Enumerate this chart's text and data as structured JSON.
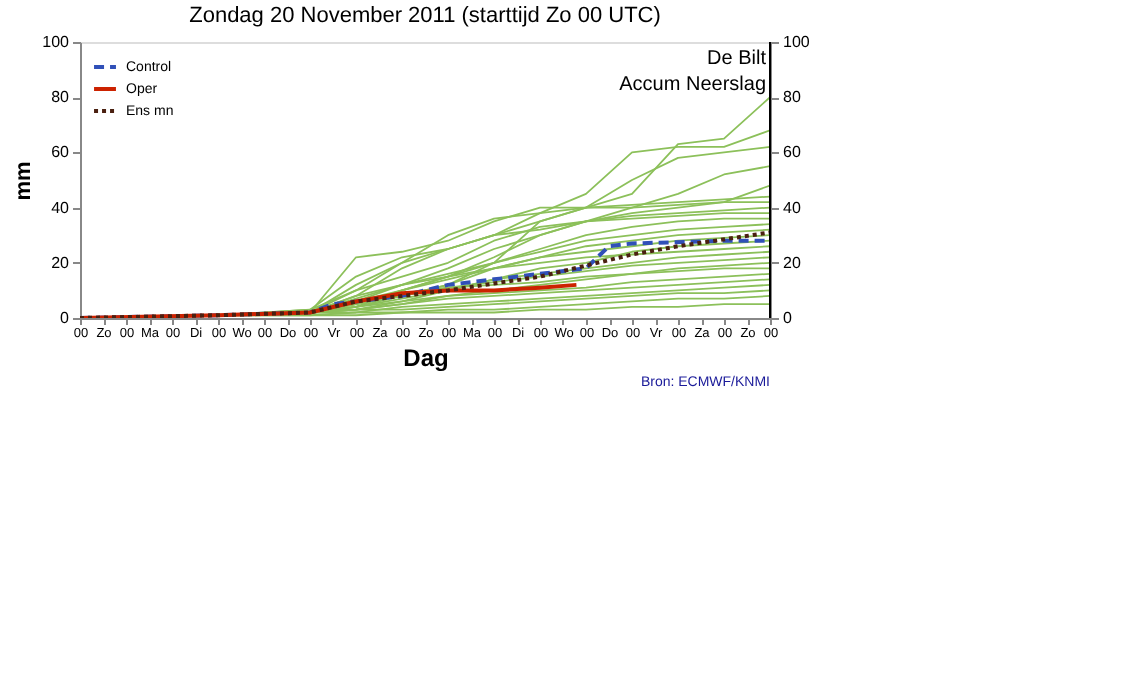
{
  "chart_data": {
    "type": "line",
    "title": "Zondag   20 November 2011  (starttijd Zo 00 UTC)",
    "xlabel": "Dag",
    "ylabel": "mm",
    "annotations": [
      "De Bilt",
      "Accum Neerslag",
      "Bron: ECMWF/KNMI"
    ],
    "xlim": [
      "2011-11-20T00:00",
      "2011-12-05T00:00"
    ],
    "xticks": [
      {
        "value": "2011-11-20T00:00",
        "label": "00"
      },
      {
        "value": "2011-11-20T12:00",
        "label": "Zo"
      },
      {
        "value": "2011-11-21T00:00",
        "label": "00"
      },
      {
        "value": "2011-11-21T12:00",
        "label": "Ma"
      },
      {
        "value": "2011-11-22T00:00",
        "label": "00"
      },
      {
        "value": "2011-11-22T12:00",
        "label": "Di"
      },
      {
        "value": "2011-11-23T00:00",
        "label": "00"
      },
      {
        "value": "2011-11-23T12:00",
        "label": "Wo"
      },
      {
        "value": "2011-11-24T00:00",
        "label": "00"
      },
      {
        "value": "2011-11-24T12:00",
        "label": "Do"
      },
      {
        "value": "2011-11-25T00:00",
        "label": "00"
      },
      {
        "value": "2011-11-25T12:00",
        "label": "Vr"
      },
      {
        "value": "2011-11-26T00:00",
        "label": "00"
      },
      {
        "value": "2011-11-26T12:00",
        "label": "Za"
      },
      {
        "value": "2011-11-27T00:00",
        "label": "00"
      },
      {
        "value": "2011-11-27T12:00",
        "label": "Zo"
      },
      {
        "value": "2011-11-28T00:00",
        "label": "00"
      },
      {
        "value": "2011-11-28T12:00",
        "label": "Ma"
      },
      {
        "value": "2011-11-29T00:00",
        "label": "00"
      },
      {
        "value": "2011-11-29T12:00",
        "label": "Di"
      },
      {
        "value": "2011-11-30T00:00",
        "label": "00"
      },
      {
        "value": "2011-11-30T12:00",
        "label": "Wo"
      },
      {
        "value": "2011-12-01T00:00",
        "label": "00"
      },
      {
        "value": "2011-12-01T12:00",
        "label": "Do"
      },
      {
        "value": "2011-12-02T00:00",
        "label": "00"
      },
      {
        "value": "2011-12-02T12:00",
        "label": "Vr"
      },
      {
        "value": "2011-12-03T00:00",
        "label": "00"
      },
      {
        "value": "2011-12-03T12:00",
        "label": "Za"
      },
      {
        "value": "2011-12-04T00:00",
        "label": "00"
      },
      {
        "value": "2011-12-04T12:00",
        "label": "Zo"
      },
      {
        "value": "2011-12-05T00:00",
        "label": "00"
      }
    ],
    "ylim": [
      0,
      100
    ],
    "yticks": [
      0,
      20,
      40,
      60,
      80,
      100
    ],
    "y2lim": [
      0,
      100
    ],
    "y2ticks": [
      0,
      20,
      40,
      60,
      80,
      100
    ],
    "grid": false,
    "legend": "top left",
    "x": [
      "2011-11-20T00:00",
      "2011-11-23T00:00",
      "2011-11-25T00:00",
      "2011-11-26T00:00",
      "2011-11-27T00:00",
      "2011-11-28T00:00",
      "2011-11-29T00:00",
      "2011-11-30T00:00",
      "2011-12-01T00:00",
      "2011-12-02T00:00",
      "2011-12-03T00:00",
      "2011-12-04T00:00",
      "2011-12-05T00:00"
    ],
    "series": [
      {
        "color": "#8cc05a",
        "values": [
          0,
          1,
          2,
          5,
          8,
          12,
          20,
          35,
          40,
          45,
          63,
          65,
          80
        ]
      },
      {
        "color": "#8cc05a",
        "values": [
          0,
          1,
          2,
          10,
          20,
          25,
          30,
          38,
          45,
          60,
          62,
          62,
          68
        ]
      },
      {
        "color": "#8cc05a",
        "values": [
          0,
          1,
          3,
          15,
          22,
          25,
          30,
          35,
          40,
          50,
          58,
          60,
          62
        ]
      },
      {
        "color": "#8cc05a",
        "values": [
          0,
          1,
          2,
          4,
          10,
          15,
          22,
          30,
          35,
          40,
          45,
          52,
          55
        ]
      },
      {
        "color": "#8cc05a",
        "values": [
          0,
          1,
          2,
          8,
          18,
          25,
          30,
          32,
          35,
          38,
          40,
          42,
          48
        ]
      },
      {
        "color": "#8cc05a",
        "values": [
          0,
          1,
          2,
          22,
          24,
          28,
          35,
          40,
          40,
          41,
          42,
          43,
          44
        ]
      },
      {
        "color": "#8cc05a",
        "values": [
          0,
          1,
          2,
          12,
          20,
          30,
          36,
          38,
          40,
          40,
          41,
          42,
          42
        ]
      },
      {
        "color": "#8cc05a",
        "values": [
          0,
          1,
          2,
          6,
          12,
          18,
          25,
          30,
          35,
          37,
          38,
          39,
          40
        ]
      },
      {
        "color": "#8cc05a",
        "values": [
          0,
          1,
          3,
          10,
          15,
          20,
          28,
          33,
          35,
          36,
          37,
          38,
          38
        ]
      },
      {
        "color": "#8cc05a",
        "values": [
          0,
          1,
          2,
          5,
          10,
          15,
          20,
          25,
          30,
          33,
          35,
          36,
          36
        ]
      },
      {
        "color": "#8cc05a",
        "values": [
          0,
          1,
          2,
          8,
          12,
          16,
          20,
          24,
          28,
          30,
          32,
          33,
          34
        ]
      },
      {
        "color": "#8cc05a",
        "values": [
          0,
          1,
          2,
          4,
          8,
          12,
          18,
          22,
          26,
          28,
          30,
          31,
          32
        ]
      },
      {
        "color": "#8cc05a",
        "values": [
          0,
          1,
          2,
          6,
          10,
          14,
          18,
          22,
          24,
          26,
          28,
          29,
          30
        ]
      },
      {
        "color": "#8cc05a",
        "values": [
          0,
          1,
          2,
          3,
          6,
          10,
          14,
          18,
          20,
          24,
          26,
          27,
          28
        ]
      },
      {
        "color": "#8cc05a",
        "values": [
          0,
          1,
          2,
          7,
          12,
          15,
          18,
          20,
          22,
          23,
          24,
          25,
          26
        ]
      },
      {
        "color": "#8cc05a",
        "values": [
          0,
          1,
          2,
          4,
          7,
          10,
          14,
          16,
          18,
          20,
          22,
          23,
          24
        ]
      },
      {
        "color": "#8cc05a",
        "values": [
          0,
          1,
          2,
          5,
          8,
          11,
          13,
          15,
          17,
          19,
          20,
          21,
          22
        ]
      },
      {
        "color": "#8cc05a",
        "values": [
          0,
          1,
          2,
          3,
          5,
          8,
          10,
          12,
          14,
          16,
          18,
          19,
          20
        ]
      },
      {
        "color": "#8cc05a",
        "values": [
          0,
          1,
          2,
          6,
          9,
          11,
          12,
          13,
          15,
          16,
          17,
          18,
          18
        ]
      },
      {
        "color": "#8cc05a",
        "values": [
          0,
          1,
          2,
          4,
          6,
          8,
          9,
          10,
          11,
          13,
          14,
          15,
          16
        ]
      },
      {
        "color": "#8cc05a",
        "values": [
          0,
          1,
          2,
          3,
          5,
          7,
          8,
          9,
          10,
          11,
          12,
          13,
          14
        ]
      },
      {
        "color": "#8cc05a",
        "values": [
          0,
          1,
          2,
          2,
          4,
          5,
          6,
          7,
          8,
          9,
          10,
          11,
          12
        ]
      },
      {
        "color": "#8cc05a",
        "values": [
          0,
          1,
          2,
          3,
          3,
          4,
          5,
          6,
          7,
          8,
          9,
          9,
          10
        ]
      },
      {
        "color": "#8cc05a",
        "values": [
          0,
          1,
          1,
          2,
          2,
          3,
          3,
          4,
          5,
          6,
          7,
          7,
          8
        ]
      },
      {
        "color": "#8cc05a",
        "values": [
          0,
          1,
          1,
          1,
          2,
          2,
          2,
          3,
          3,
          4,
          4,
          5,
          5
        ]
      },
      {
        "name": "Control",
        "color": "#3050b8",
        "line_style": "dashed",
        "x": [
          "2011-11-20T00:00",
          "2011-11-23T00:00",
          "2011-11-25T00:00",
          "2011-11-25T12:00",
          "2011-11-27T00:00",
          "2011-11-28T00:00",
          "2011-11-29T00:00",
          "2011-11-30T00:00",
          "2011-12-01T00:00",
          "2011-12-01T12:00",
          "2011-12-02T00:00",
          "2011-12-04T00:00",
          "2011-12-05T00:00"
        ],
        "values": [
          0,
          1,
          2,
          5,
          8,
          12,
          14,
          16,
          18,
          26,
          27,
          28,
          28
        ]
      },
      {
        "name": "Oper",
        "color": "#cc2200",
        "line_style": "solid",
        "x": [
          "2011-11-20T00:00",
          "2011-11-23T00:00",
          "2011-11-25T00:00",
          "2011-11-26T00:00",
          "2011-11-27T00:00",
          "2011-11-28T00:00",
          "2011-11-29T00:00",
          "2011-11-30T00:00",
          "2011-11-30T19:00"
        ],
        "values": [
          0,
          1,
          2,
          6,
          9,
          10,
          10,
          11,
          12
        ]
      },
      {
        "name": "Ens mn",
        "color": "#4a2010",
        "line_style": "dotted",
        "x": [
          "2011-11-20T00:00",
          "2011-11-23T00:00",
          "2011-11-25T00:00",
          "2011-11-26T00:00",
          "2011-11-28T00:00",
          "2011-11-30T00:00",
          "2011-12-01T00:00",
          "2011-12-02T00:00",
          "2011-12-03T00:00",
          "2011-12-05T00:00"
        ],
        "values": [
          0,
          1,
          2,
          6,
          10,
          15,
          19,
          23,
          26,
          31
        ]
      }
    ]
  }
}
